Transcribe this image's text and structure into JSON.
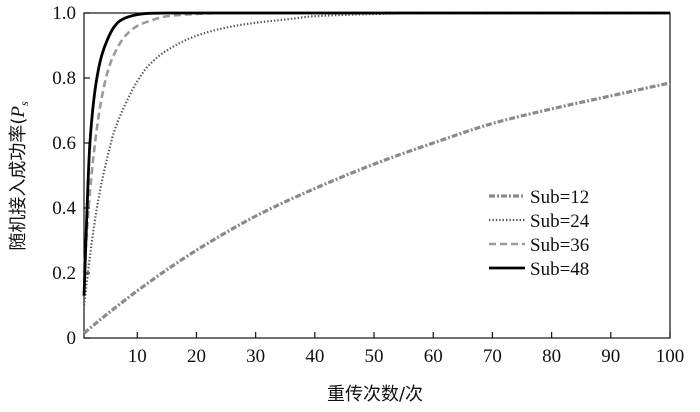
{
  "chart_data": {
    "type": "line",
    "xlabel": "重传次数/次",
    "ylabel_main": "随机接入成功率(",
    "ylabel_var": "P",
    "ylabel_sub": "s",
    "xlim": [
      1,
      100
    ],
    "ylim": [
      0,
      1
    ],
    "xticks": [
      10,
      20,
      30,
      40,
      50,
      60,
      70,
      80,
      90,
      100
    ],
    "yticks": [
      0,
      0.2,
      0.4,
      0.6,
      0.8,
      1.0
    ],
    "ytick_labels": [
      "0",
      "0.2",
      "0.4",
      "0.6",
      "0.8",
      "1.0"
    ],
    "legend_position": "right-middle",
    "series": [
      {
        "name": "Sub=12",
        "color": "#8a8a8a",
        "style": "dashdot",
        "x": [
          1,
          5,
          10,
          15,
          20,
          30,
          40,
          50,
          60,
          70,
          80,
          90,
          100
        ],
        "y": [
          0.015,
          0.075,
          0.145,
          0.21,
          0.27,
          0.375,
          0.46,
          0.535,
          0.6,
          0.66,
          0.705,
          0.745,
          0.785
        ]
      },
      {
        "name": "Sub=24",
        "color": "#555555",
        "style": "dotted",
        "x": [
          1,
          2,
          3,
          4,
          5,
          6,
          8,
          10,
          12,
          15,
          20,
          25,
          30,
          35,
          40,
          50,
          60,
          70,
          80,
          90,
          100
        ],
        "y": [
          0.1,
          0.25,
          0.38,
          0.48,
          0.56,
          0.63,
          0.72,
          0.79,
          0.84,
          0.885,
          0.93,
          0.955,
          0.97,
          0.98,
          0.99,
          0.997,
          1.0,
          1.0,
          1.0,
          1.0,
          1.0
        ]
      },
      {
        "name": "Sub=36",
        "color": "#9a9a9a",
        "style": "dashed",
        "x": [
          1,
          2,
          3,
          4,
          5,
          6,
          8,
          10,
          12,
          15,
          20,
          25,
          30,
          40,
          50,
          60,
          70,
          80,
          90,
          100
        ],
        "y": [
          0.2,
          0.45,
          0.62,
          0.74,
          0.82,
          0.87,
          0.93,
          0.96,
          0.975,
          0.99,
          0.997,
          1.0,
          1.0,
          1.0,
          1.0,
          1.0,
          1.0,
          1.0,
          1.0,
          1.0
        ]
      },
      {
        "name": "Sub=48",
        "color": "#000000",
        "style": "solid",
        "x": [
          1,
          2,
          3,
          4,
          5,
          6,
          7,
          8,
          10,
          12,
          15,
          20,
          30,
          40,
          50,
          60,
          70,
          80,
          90,
          100
        ],
        "y": [
          0.13,
          0.6,
          0.78,
          0.87,
          0.92,
          0.955,
          0.975,
          0.985,
          0.995,
          0.999,
          1.0,
          1.0,
          1.0,
          1.0,
          1.0,
          1.0,
          1.0,
          1.0,
          1.0,
          1.0
        ]
      }
    ]
  }
}
